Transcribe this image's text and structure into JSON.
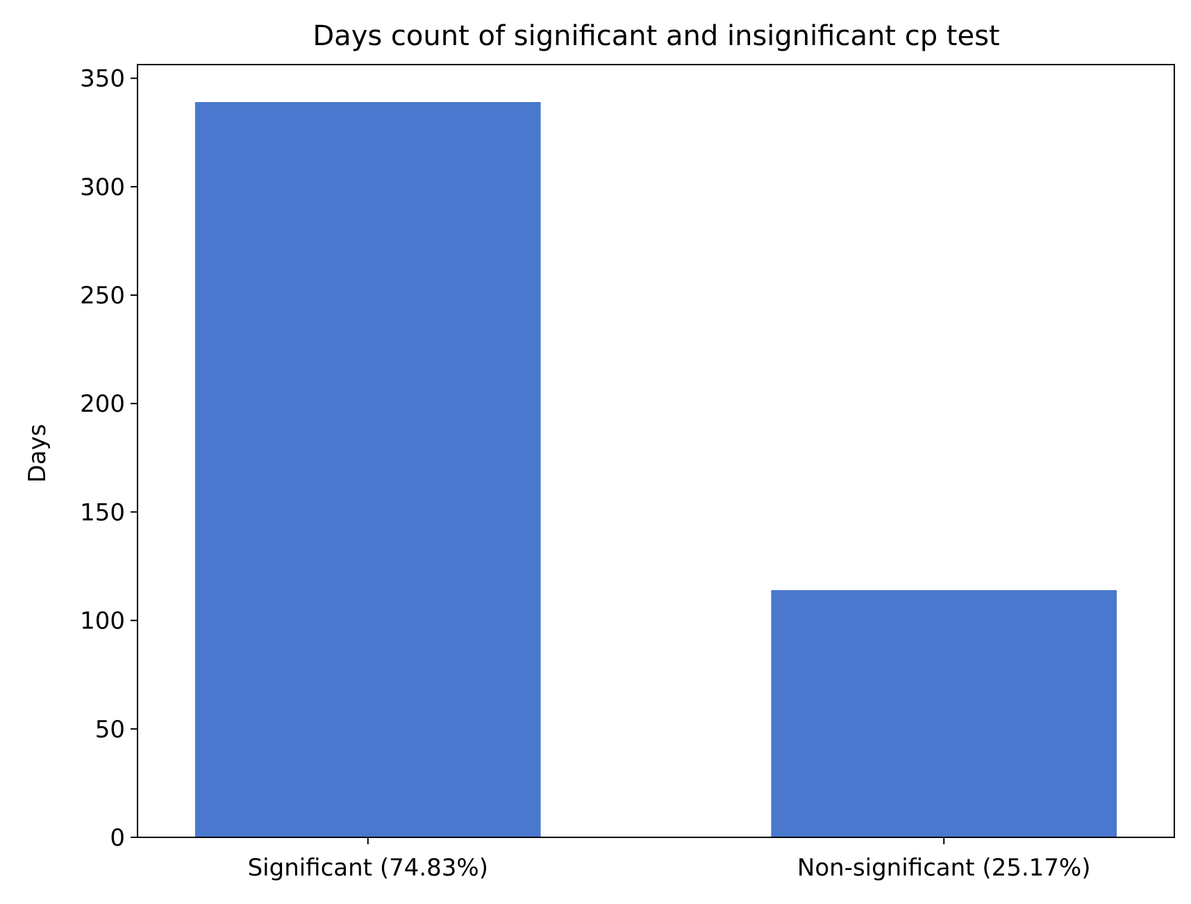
{
  "chart_data": {
    "type": "bar",
    "title": "Days count of significant and insignificant cp test",
    "xlabel": "",
    "ylabel": "Days",
    "categories": [
      "Significant (74.83%)",
      "Non-significant (25.17%)"
    ],
    "values": [
      339,
      114
    ],
    "ylim": [
      0,
      356.3
    ],
    "yticks": [
      "0",
      "50",
      "100",
      "150",
      "200",
      "250",
      "300",
      "350"
    ],
    "bar_color": "#4a78ce",
    "grid": false,
    "legend": "none"
  }
}
